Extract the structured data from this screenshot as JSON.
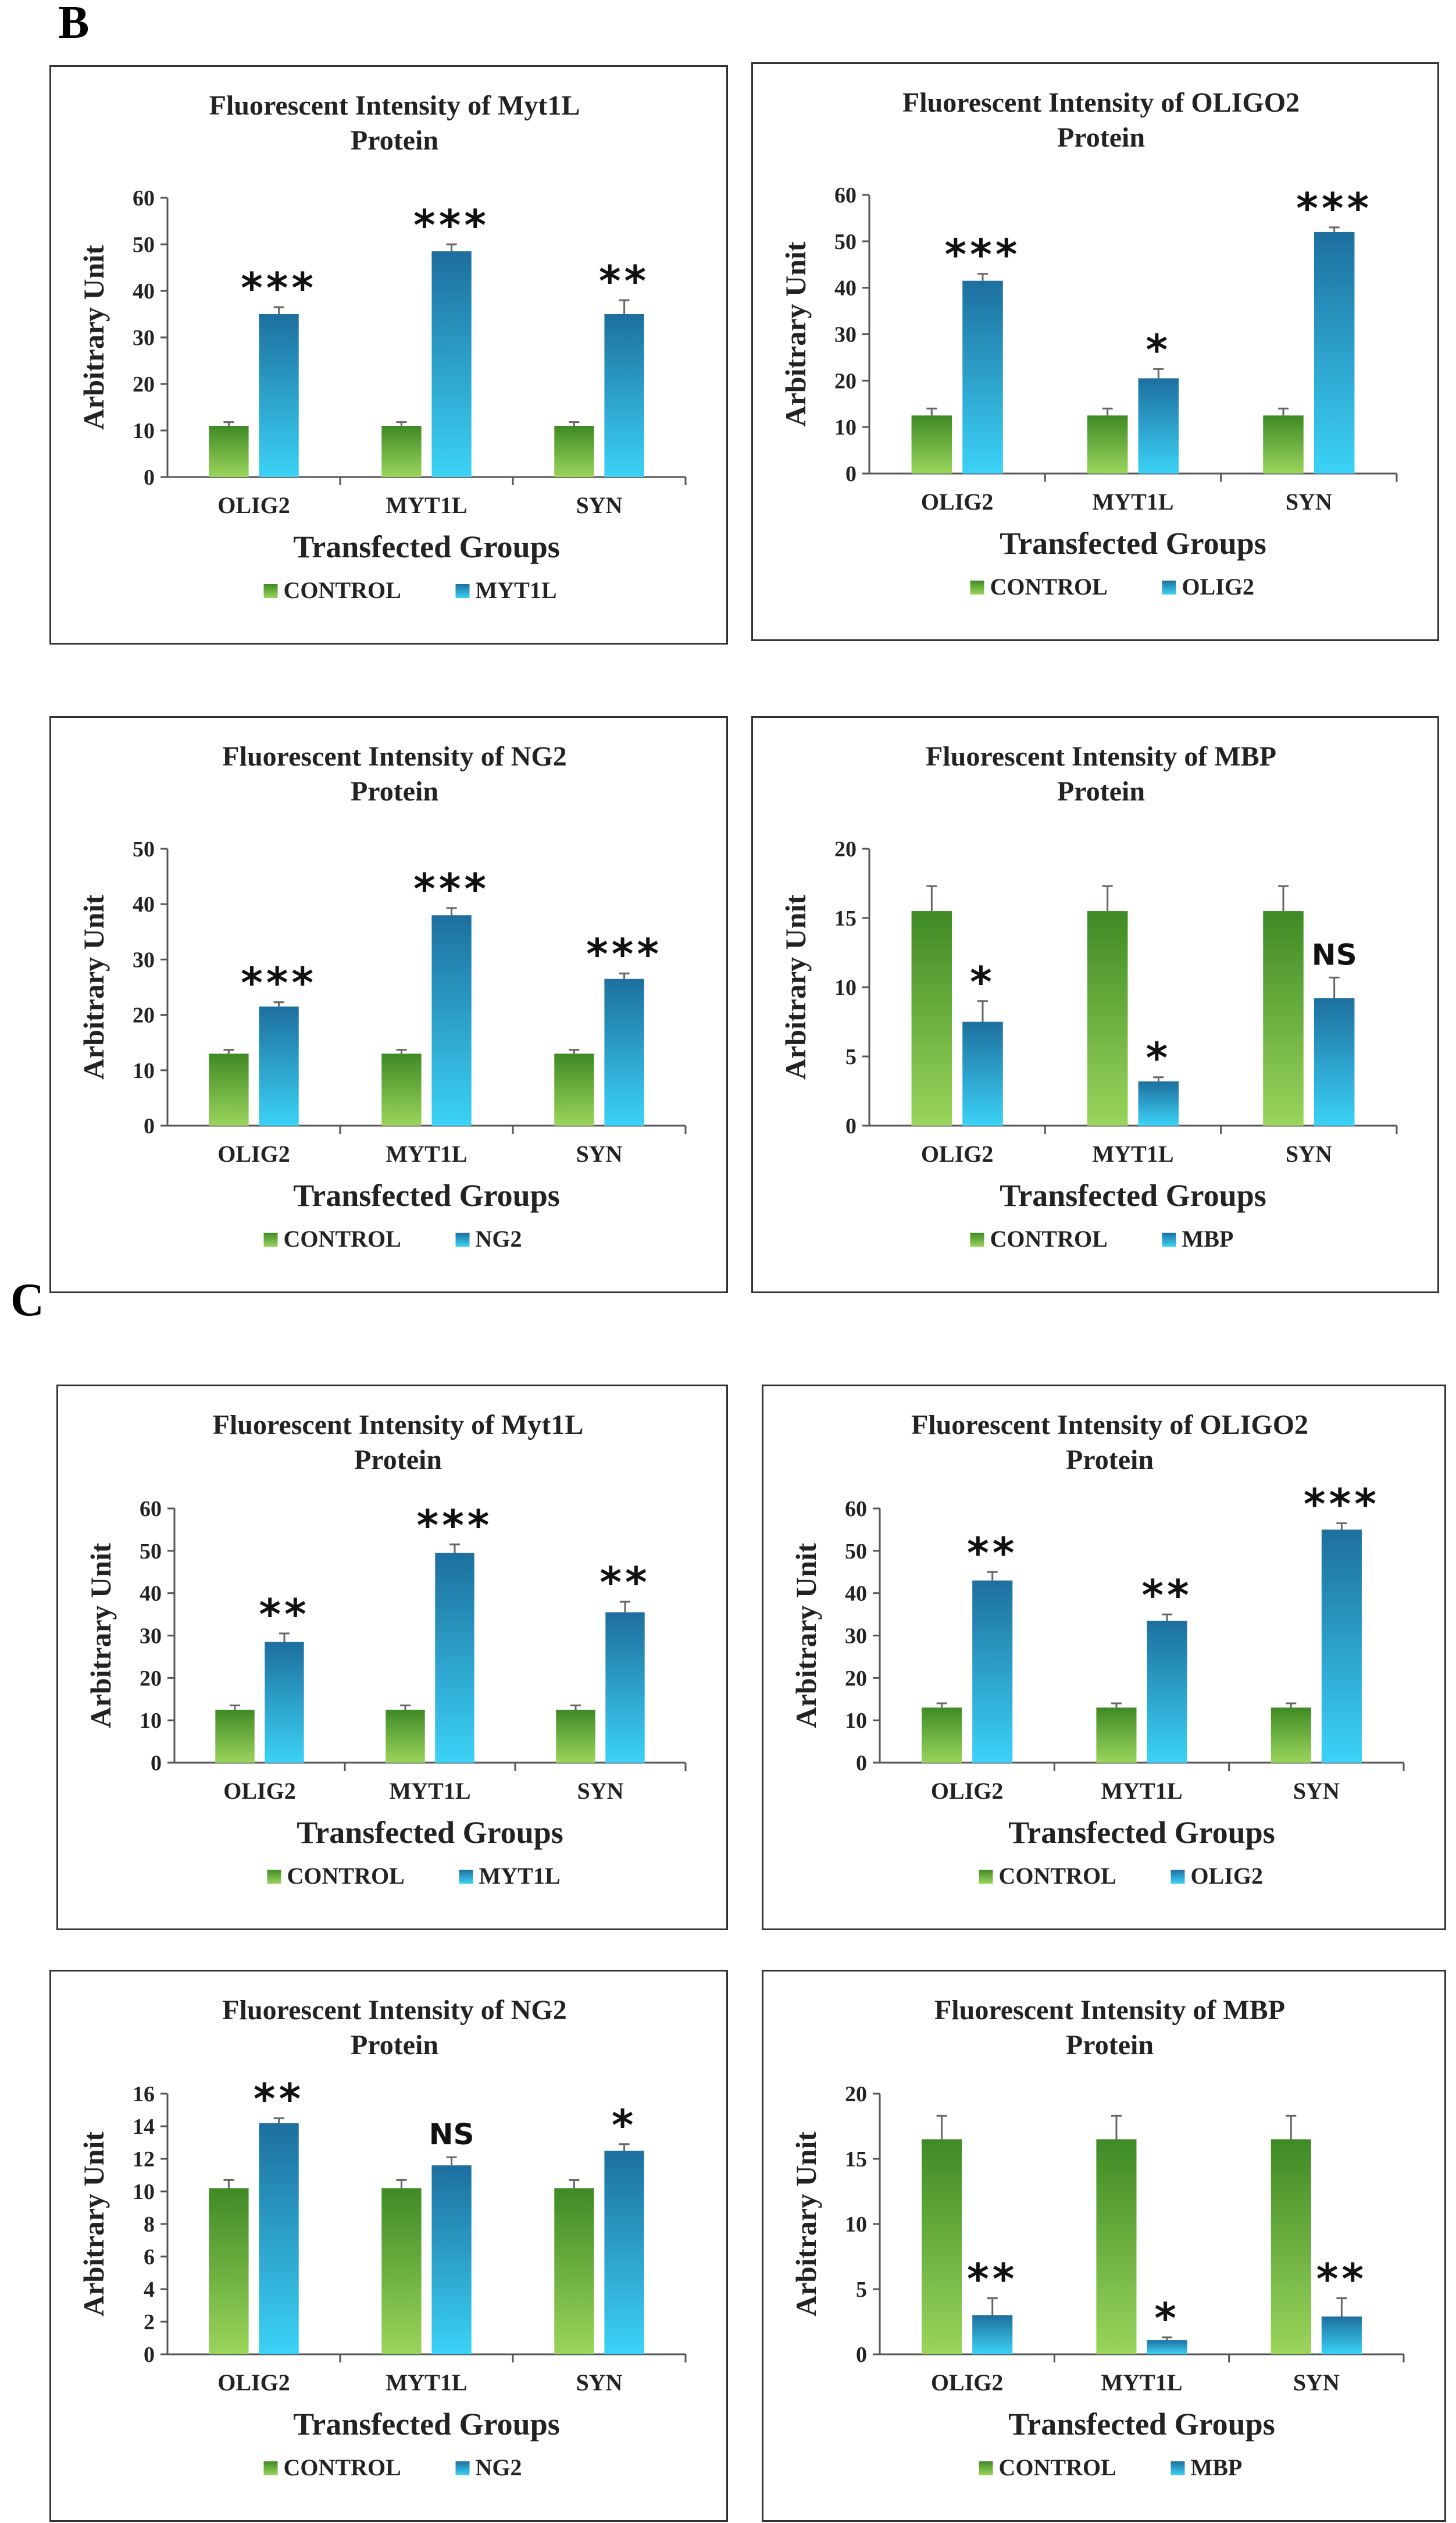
{
  "sections": [
    {
      "label": "B",
      "charts": [
        {
          "title": "Fluorescent Intensity of Myt1L",
          "title2": "Protein",
          "type": "bar",
          "ylabel": "Arbitrary Unit",
          "xlabel": "Transfected Groups",
          "categories": [
            "OLIG2",
            "MYT1L",
            "SYN"
          ],
          "ylim": [
            0,
            60
          ],
          "yticks": [
            0,
            10,
            20,
            30,
            40,
            50,
            60
          ],
          "series": [
            {
              "name": "CONTROL",
              "values": [
                11,
                11,
                11
              ],
              "errors": [
                0.8,
                0.8,
                0.8
              ]
            },
            {
              "name": "MYT1L",
              "values": [
                35,
                48.5,
                35
              ],
              "errors": [
                1.5,
                1.5,
                3
              ]
            }
          ],
          "annotations": [
            "***",
            "***",
            "**"
          ]
        },
        {
          "title": "Fluorescent Intensity of OLIGO2",
          "title2": "Protein",
          "type": "bar",
          "ylabel": "Arbitrary Unit",
          "xlabel": "Transfected Groups",
          "categories": [
            "OLIG2",
            "MYT1L",
            "SYN"
          ],
          "ylim": [
            0,
            60
          ],
          "yticks": [
            0,
            10,
            20,
            30,
            40,
            50,
            60
          ],
          "series": [
            {
              "name": "CONTROL",
              "values": [
                12.5,
                12.5,
                12.5
              ],
              "errors": [
                1.5,
                1.5,
                1.5
              ]
            },
            {
              "name": "OLIG2",
              "values": [
                41.5,
                20.5,
                52
              ],
              "errors": [
                1.5,
                2,
                1
              ]
            }
          ],
          "annotations": [
            "***",
            "*",
            "***"
          ]
        },
        {
          "title": "Fluorescent Intensity of NG2",
          "title2": "Protein",
          "type": "bar",
          "ylabel": "Arbitrary Unit",
          "xlabel": "Transfected Groups",
          "categories": [
            "OLIG2",
            "MYT1L",
            "SYN"
          ],
          "ylim": [
            0,
            50
          ],
          "yticks": [
            0,
            10,
            20,
            30,
            40,
            50
          ],
          "series": [
            {
              "name": "CONTROL",
              "values": [
                13,
                13,
                13
              ],
              "errors": [
                0.7,
                0.7,
                0.7
              ]
            },
            {
              "name": "NG2",
              "values": [
                21.5,
                38,
                26.5
              ],
              "errors": [
                0.8,
                1.3,
                1
              ]
            }
          ],
          "annotations": [
            "***",
            "***",
            "***"
          ]
        },
        {
          "title": "Fluorescent Intensity of MBP",
          "title2": "Protein",
          "type": "bar",
          "ylabel": "Arbitrary Unit",
          "xlabel": "Transfected Groups",
          "categories": [
            "OLIG2",
            "MYT1L",
            "SYN"
          ],
          "ylim": [
            0,
            20
          ],
          "yticks": [
            0,
            5,
            10,
            15,
            20
          ],
          "series": [
            {
              "name": "CONTROL",
              "values": [
                15.5,
                15.5,
                15.5
              ],
              "errors": [
                1.8,
                1.8,
                1.8
              ]
            },
            {
              "name": "MBP",
              "values": [
                7.5,
                3.2,
                9.2
              ],
              "errors": [
                1.5,
                0.3,
                1.5
              ]
            }
          ],
          "annotations": [
            "*",
            "*",
            "NS"
          ]
        }
      ]
    },
    {
      "label": "C",
      "charts": [
        {
          "title": "Fluorescent Intensity of Myt1L",
          "title2": "Protein",
          "type": "bar",
          "ylabel": "Arbitrary Unit",
          "xlabel": "Transfected Groups",
          "categories": [
            "OLIG2",
            "MYT1L",
            "SYN"
          ],
          "ylim": [
            0,
            60
          ],
          "yticks": [
            0,
            10,
            20,
            30,
            40,
            50,
            60
          ],
          "series": [
            {
              "name": "CONTROL",
              "values": [
                12.5,
                12.5,
                12.5
              ],
              "errors": [
                1,
                1,
                1
              ]
            },
            {
              "name": "MYT1L",
              "values": [
                28.5,
                49.5,
                35.5
              ],
              "errors": [
                2,
                2,
                2.5
              ]
            }
          ],
          "annotations": [
            "**",
            "***",
            "**"
          ]
        },
        {
          "title": "Fluorescent Intensity of OLIGO2",
          "title2": "Protein",
          "type": "bar",
          "ylabel": "Arbitrary Unit",
          "xlabel": "Transfected Groups",
          "categories": [
            "OLIG2",
            "MYT1L",
            "SYN"
          ],
          "ylim": [
            0,
            60
          ],
          "yticks": [
            0,
            10,
            20,
            30,
            40,
            50,
            60
          ],
          "series": [
            {
              "name": "CONTROL",
              "values": [
                13,
                13,
                13
              ],
              "errors": [
                1,
                1,
                1
              ]
            },
            {
              "name": "OLIG2",
              "values": [
                43,
                33.5,
                55
              ],
              "errors": [
                2,
                1.5,
                1.5
              ]
            }
          ],
          "annotations": [
            "**",
            "**",
            "***"
          ]
        },
        {
          "title": "Fluorescent Intensity of NG2",
          "title2": "Protein",
          "type": "bar",
          "ylabel": "Arbitrary Unit",
          "xlabel": "Transfected Groups",
          "categories": [
            "OLIG2",
            "MYT1L",
            "SYN"
          ],
          "ylim": [
            0,
            16
          ],
          "yticks": [
            0,
            2,
            4,
            6,
            8,
            10,
            12,
            14,
            16
          ],
          "series": [
            {
              "name": "CONTROL",
              "values": [
                10.2,
                10.2,
                10.2
              ],
              "errors": [
                0.5,
                0.5,
                0.5
              ]
            },
            {
              "name": "NG2",
              "values": [
                14.2,
                11.6,
                12.5
              ],
              "errors": [
                0.3,
                0.5,
                0.4
              ]
            }
          ],
          "annotations": [
            "**",
            "NS",
            "*"
          ]
        },
        {
          "title": "Fluorescent Intensity of MBP",
          "title2": "Protein",
          "type": "bar",
          "ylabel": "Arbitrary Unit",
          "xlabel": "Transfected Groups",
          "categories": [
            "OLIG2",
            "MYT1L",
            "SYN"
          ],
          "ylim": [
            0,
            20
          ],
          "yticks": [
            0,
            5,
            10,
            15,
            20
          ],
          "series": [
            {
              "name": "CONTROL",
              "values": [
                16.5,
                16.5,
                16.5
              ],
              "errors": [
                1.8,
                1.8,
                1.8
              ]
            },
            {
              "name": "MBP",
              "values": [
                3,
                1.1,
                2.9
              ],
              "errors": [
                1.3,
                0.2,
                1.4
              ]
            }
          ],
          "annotations": [
            "**",
            "*",
            "**"
          ]
        }
      ]
    }
  ],
  "colors": {
    "control_top": "#3f8a25",
    "control_bottom": "#9ad55c",
    "treat_top": "#1d6f9e",
    "treat_bottom": "#3cd2f7",
    "axis": "#555555",
    "grid": "#bbbbbb",
    "border": "#333333"
  }
}
